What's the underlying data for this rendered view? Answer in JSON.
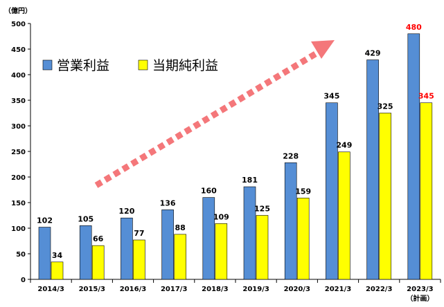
{
  "chart_data": {
    "type": "bar",
    "unit_label": "（億円）",
    "categories": [
      "2014/3",
      "2015/3",
      "2016/3",
      "2017/3",
      "2018/3",
      "2019/3",
      "2020/3",
      "2021/3",
      "2022/3",
      "2023/3"
    ],
    "category_notes": [
      "",
      "",
      "",
      "",
      "",
      "",
      "",
      "",
      "",
      "（計画）"
    ],
    "series": [
      {
        "name": "営業利益",
        "color": "#558ed5",
        "values": [
          102,
          105,
          120,
          136,
          160,
          181,
          228,
          345,
          429,
          480
        ]
      },
      {
        "name": "当期純利益",
        "color": "#ffff00",
        "values": [
          34,
          66,
          77,
          88,
          109,
          125,
          159,
          249,
          325,
          345
        ]
      }
    ],
    "highlight_categories": [
      "2023/3"
    ],
    "highlight_color": "#ff0000",
    "ylim": [
      0,
      500
    ],
    "yticks": [
      0,
      50,
      100,
      150,
      200,
      250,
      300,
      350,
      400,
      450,
      500
    ],
    "grid": false,
    "legend_position": "upper-left",
    "trend_arrow": {
      "color": "#f4777a",
      "style": "dashed"
    }
  }
}
